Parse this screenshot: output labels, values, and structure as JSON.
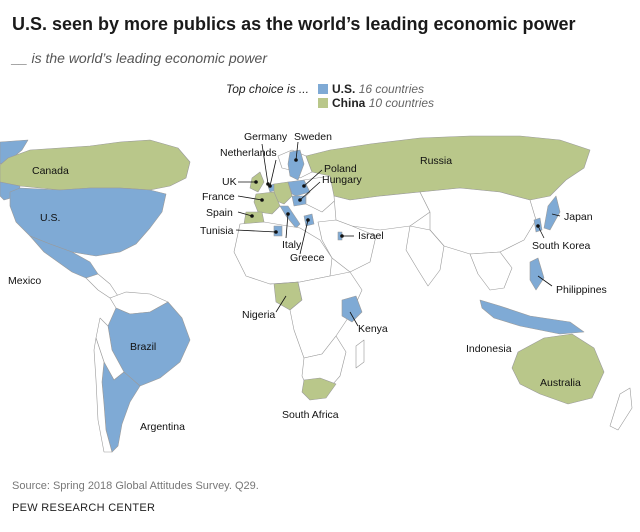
{
  "title": "U.S. seen by more publics as the world’s leading economic power",
  "subtitle": "__ is the world’s leading economic power",
  "legend": {
    "lead": "Top choice is ...",
    "us": {
      "label": "U.S.",
      "count": "16 countries",
      "color": "#7faad5"
    },
    "china": {
      "label": "China",
      "count": "10 countries",
      "color": "#b9c78a"
    }
  },
  "colors": {
    "land": "#ffffff",
    "border": "#9a9a9a",
    "ocean": "#ffffff"
  },
  "map": {
    "top_choice_us": [
      "Canada?"
    ],
    "labels": {
      "canada": "Canada",
      "us": "U.S.",
      "mexico": "Mexico",
      "brazil": "Brazil",
      "argentina": "Argentina",
      "germany": "Germany",
      "sweden": "Sweden",
      "netherlands": "Netherlands",
      "poland": "Poland",
      "hungary": "Hungary",
      "uk": "UK",
      "france": "France",
      "spain": "Spain",
      "tunisia": "Tunisia",
      "italy": "Italy",
      "greece": "Greece",
      "israel": "Israel",
      "russia": "Russia",
      "japan": "Japan",
      "south_korea": "South Korea",
      "philippines": "Philippines",
      "indonesia": "Indonesia",
      "australia": "Australia",
      "nigeria": "Nigeria",
      "kenya": "Kenya",
      "south_africa": "South Africa"
    }
  },
  "countries": {
    "us_choice": [
      "Canada? no"
    ],
    "list": []
  },
  "source": "Source: Spring 2018 Global Attitudes Survey. Q29.",
  "credit": "PEW RESEARCH CENTER"
}
